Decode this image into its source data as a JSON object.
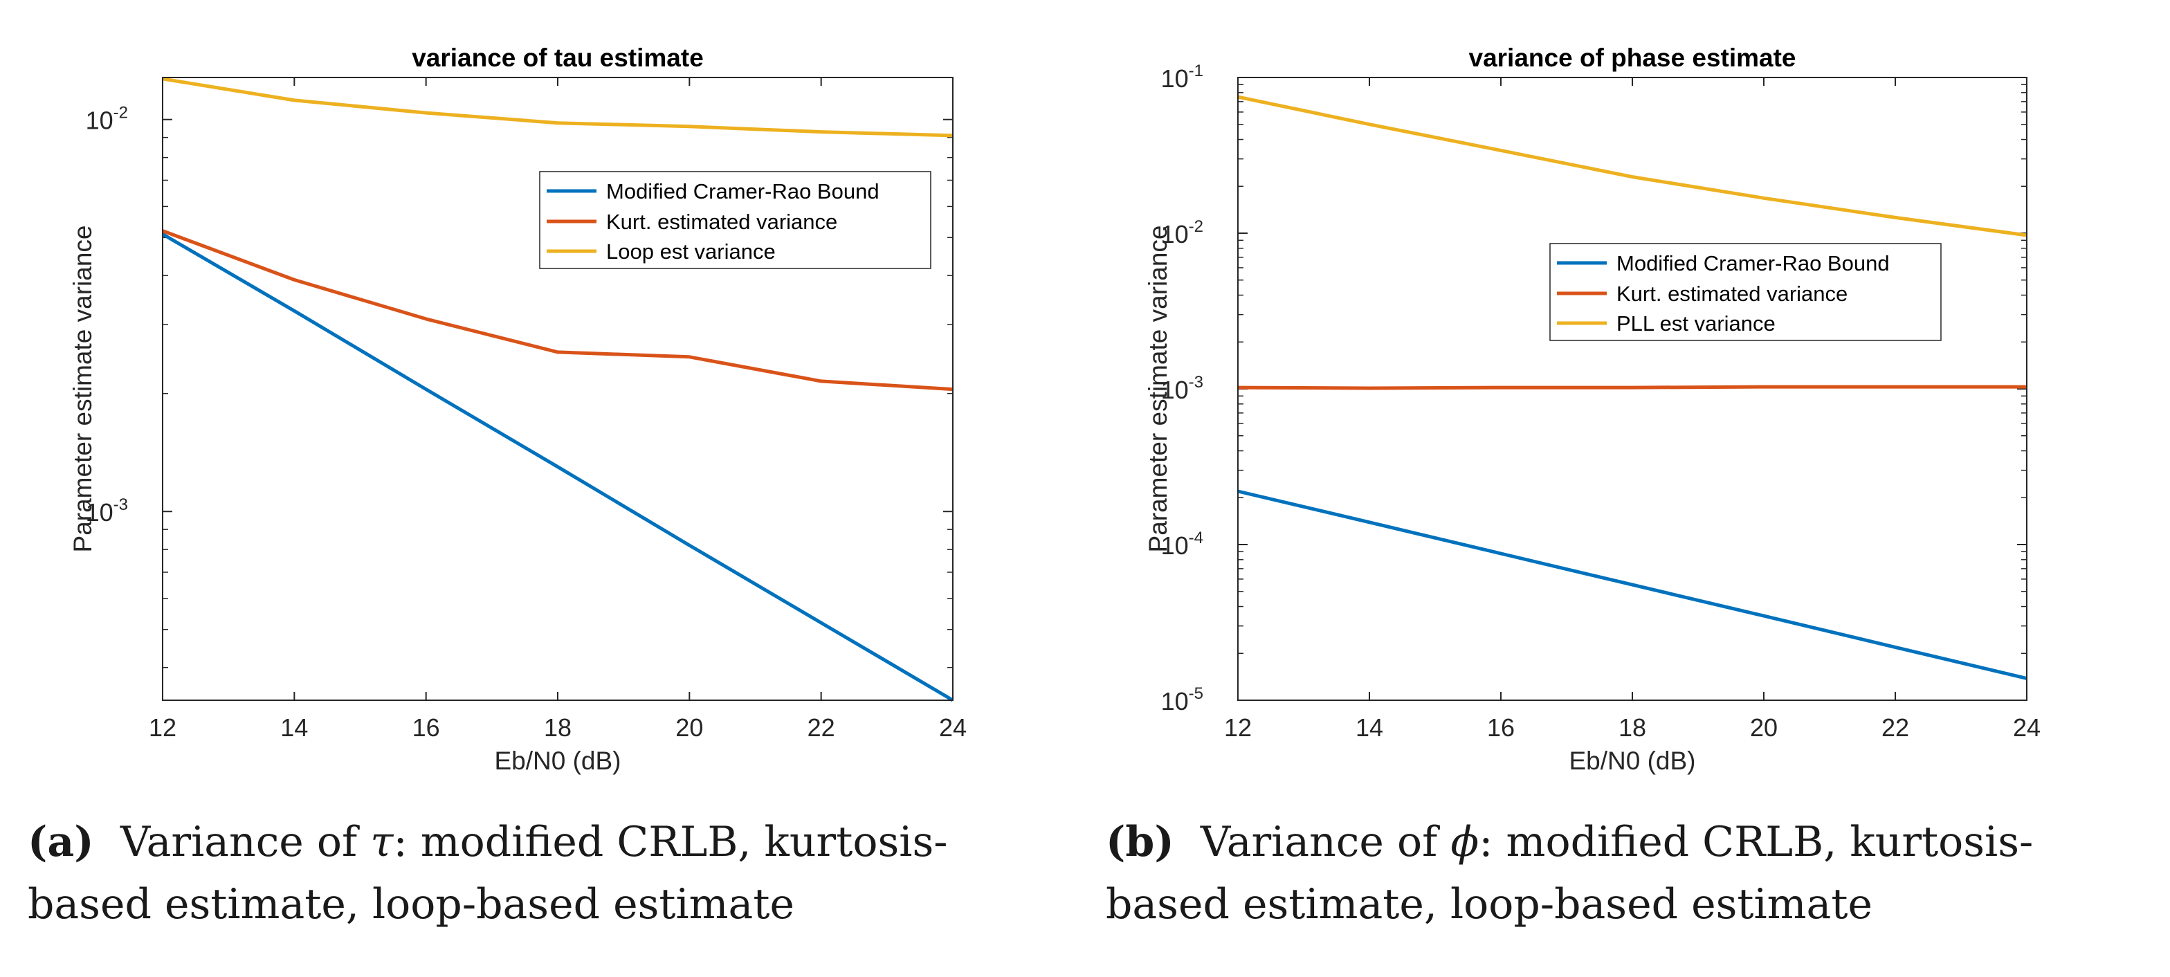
{
  "chart_data": [
    {
      "type": "line",
      "title": "variance of tau estimate",
      "xlabel": "Eb/N0 (dB)",
      "ylabel": "Parameter estimate variance",
      "xscale": "linear",
      "yscale": "log",
      "xlim": [
        12,
        24
      ],
      "ylim": [
        0.00033,
        0.0128
      ],
      "x_ticks": [
        12,
        14,
        16,
        18,
        20,
        22,
        24
      ],
      "y_ticks": [
        {
          "value": 0.001,
          "base": "10",
          "exp": "-3"
        },
        {
          "value": 0.01,
          "base": "10",
          "exp": "-2"
        }
      ],
      "legend_position": "top-right",
      "series": [
        {
          "name": "Modified Cramer-Rao Bound",
          "color": "#0072BD",
          "x": [
            12,
            14,
            16,
            18,
            20,
            22,
            24
          ],
          "values": [
            0.0051,
            0.00325,
            0.00205,
            0.0013,
            0.00082,
            0.00052,
            0.00033
          ]
        },
        {
          "name": "Kurt. estimated variance",
          "color": "#D95319",
          "x": [
            12,
            14,
            16,
            18,
            20,
            22,
            24
          ],
          "values": [
            0.0052,
            0.0039,
            0.0031,
            0.00255,
            0.00248,
            0.00215,
            0.00205
          ]
        },
        {
          "name": "Loop est variance",
          "color": "#EDB120",
          "x": [
            12,
            14,
            16,
            18,
            20,
            22,
            24
          ],
          "values": [
            0.0127,
            0.0112,
            0.0104,
            0.0098,
            0.0096,
            0.0093,
            0.0091
          ]
        }
      ]
    },
    {
      "type": "line",
      "title": "variance of phase estimate",
      "xlabel": "Eb/N0 (dB)",
      "ylabel": "Parameter estimate variance",
      "xscale": "linear",
      "yscale": "log",
      "xlim": [
        12,
        24
      ],
      "ylim": [
        1e-05,
        0.1
      ],
      "x_ticks": [
        12,
        14,
        16,
        18,
        20,
        22,
        24
      ],
      "y_ticks": [
        {
          "value": 1e-05,
          "base": "10",
          "exp": "-5"
        },
        {
          "value": 0.0001,
          "base": "10",
          "exp": "-4"
        },
        {
          "value": 0.001,
          "base": "10",
          "exp": "-3"
        },
        {
          "value": 0.01,
          "base": "10",
          "exp": "-2"
        },
        {
          "value": 0.1,
          "base": "10",
          "exp": "-1"
        }
      ],
      "legend_position": "right",
      "series": [
        {
          "name": "Modified Cramer-Rao Bound",
          "color": "#0072BD",
          "x": [
            12,
            14,
            16,
            18,
            20,
            22,
            24
          ],
          "values": [
            0.00022,
            0.000139,
            8.75e-05,
            5.52e-05,
            3.48e-05,
            2.19e-05,
            1.38e-05
          ]
        },
        {
          "name": "Kurt. estimated variance",
          "color": "#D95319",
          "x": [
            12,
            14,
            16,
            18,
            20,
            22,
            24
          ],
          "values": [
            0.00102,
            0.00101,
            0.00102,
            0.00102,
            0.00103,
            0.00103,
            0.00103
          ]
        },
        {
          "name": "PLL est variance",
          "color": "#EDB120",
          "x": [
            12,
            14,
            16,
            18,
            20,
            22,
            24
          ],
          "values": [
            0.075,
            0.05,
            0.034,
            0.023,
            0.0168,
            0.0126,
            0.0097
          ]
        }
      ]
    }
  ],
  "captions": [
    {
      "label": "(a)",
      "line1_pre": "Variance of ",
      "symbol": "τ",
      "line1_post": ": modified CRLB, kurtosis-",
      "line2": "based estimate, loop-based estimate"
    },
    {
      "label": "(b)",
      "line1_pre": "Variance of ",
      "symbol": "ϕ",
      "line1_post": ": modified CRLB, kurtosis-",
      "line2": "based estimate, loop-based estimate"
    }
  ]
}
